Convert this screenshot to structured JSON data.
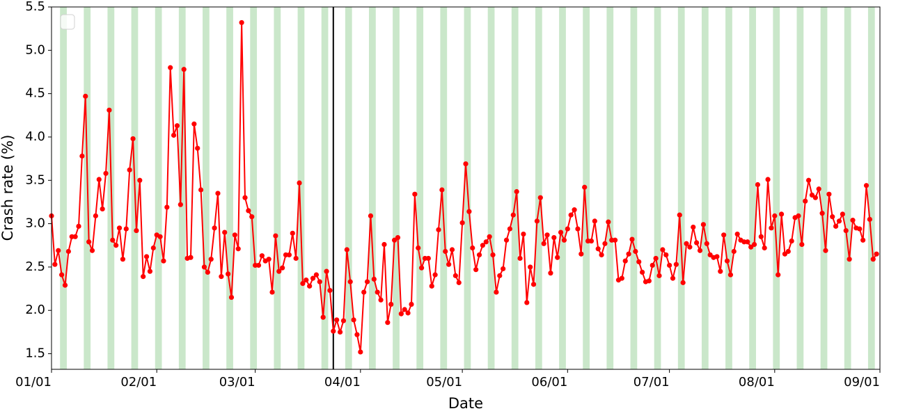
{
  "chart_data": {
    "type": "line",
    "xlabel": "Date",
    "ylabel": "Crash rate (%)",
    "color": "#ff0000",
    "shade_color": "#2ca02c",
    "vline": "03/24",
    "x": [
      "01/01",
      "01/02",
      "01/03",
      "01/04",
      "01/05",
      "01/06",
      "01/07",
      "01/08",
      "01/09",
      "01/10",
      "01/11",
      "01/12",
      "01/13",
      "01/14",
      "01/15",
      "01/16",
      "01/17",
      "01/18",
      "01/19",
      "01/20",
      "01/21",
      "01/22",
      "01/23",
      "01/24",
      "01/25",
      "01/26",
      "01/27",
      "01/28",
      "01/29",
      "01/30",
      "01/31",
      "02/01",
      "02/02",
      "02/03",
      "02/04",
      "02/05",
      "02/06",
      "02/07",
      "02/08",
      "02/09",
      "02/10",
      "02/11",
      "02/12",
      "02/13",
      "02/14",
      "02/15",
      "02/16",
      "02/17",
      "02/18",
      "02/19",
      "02/20",
      "02/21",
      "02/22",
      "02/23",
      "02/24",
      "02/25",
      "02/26",
      "02/27",
      "02/28",
      "02/29",
      "03/01",
      "03/02",
      "03/03",
      "03/04",
      "03/05",
      "03/06",
      "03/07",
      "03/08",
      "03/09",
      "03/10",
      "03/11",
      "03/12",
      "03/13",
      "03/14",
      "03/15",
      "03/16",
      "03/17",
      "03/18",
      "03/19",
      "03/20",
      "03/21",
      "03/22",
      "03/23",
      "03/24",
      "03/25",
      "03/26",
      "03/27",
      "03/28",
      "03/29",
      "03/30",
      "03/31",
      "04/01",
      "04/02",
      "04/03",
      "04/04",
      "04/05",
      "04/06",
      "04/07",
      "04/08",
      "04/09",
      "04/10",
      "04/11",
      "04/12",
      "04/13",
      "04/14",
      "04/15",
      "04/16",
      "04/17",
      "04/18",
      "04/19",
      "04/20",
      "04/21",
      "04/22",
      "04/23",
      "04/24",
      "04/25",
      "04/26",
      "04/27",
      "04/28",
      "04/29",
      "04/30",
      "05/01",
      "05/02",
      "05/03",
      "05/04",
      "05/05",
      "05/06",
      "05/07",
      "05/08",
      "05/09",
      "05/10",
      "05/11",
      "05/12",
      "05/13",
      "05/14",
      "05/15",
      "05/16",
      "05/17",
      "05/18",
      "05/19",
      "05/20",
      "05/21",
      "05/22",
      "05/23",
      "05/24",
      "05/25",
      "05/26",
      "05/27",
      "05/28",
      "05/29",
      "05/30",
      "05/31",
      "06/01",
      "06/02",
      "06/03",
      "06/04",
      "06/05",
      "06/06",
      "06/07",
      "06/08",
      "06/09",
      "06/10",
      "06/11",
      "06/12",
      "06/13",
      "06/14",
      "06/15",
      "06/16",
      "06/17",
      "06/18",
      "06/19",
      "06/20",
      "06/21",
      "06/22",
      "06/23",
      "06/24",
      "06/25",
      "06/26",
      "06/27",
      "06/28",
      "06/29",
      "06/30",
      "07/01",
      "07/02",
      "07/03",
      "07/04",
      "07/05",
      "07/06",
      "07/07",
      "07/08",
      "07/09",
      "07/10",
      "07/11",
      "07/12",
      "07/13",
      "07/14",
      "07/15",
      "07/16",
      "07/17",
      "07/18",
      "07/19",
      "07/20",
      "07/21",
      "07/22",
      "07/23",
      "07/24",
      "07/25",
      "07/26",
      "07/27",
      "07/28",
      "07/29",
      "07/30",
      "07/31",
      "08/01",
      "08/02",
      "08/03",
      "08/04",
      "08/05",
      "08/06",
      "08/07",
      "08/08",
      "08/09",
      "08/10",
      "08/11",
      "08/12",
      "08/13",
      "08/14",
      "08/15",
      "08/16",
      "08/17",
      "08/18",
      "08/19",
      "08/20",
      "08/21",
      "08/22",
      "08/23",
      "08/24",
      "08/25",
      "08/26",
      "08/27",
      "08/28",
      "08/29",
      "08/30",
      "08/31"
    ],
    "values": [
      3.09,
      2.53,
      2.69,
      2.41,
      2.29,
      2.68,
      2.85,
      2.85,
      2.97,
      3.78,
      4.47,
      2.79,
      2.69,
      3.09,
      3.51,
      3.17,
      3.58,
      4.31,
      2.81,
      2.75,
      2.95,
      2.59,
      2.94,
      3.62,
      3.98,
      2.92,
      3.5,
      2.39,
      2.62,
      2.45,
      2.72,
      2.87,
      2.85,
      2.57,
      3.19,
      4.8,
      4.02,
      4.13,
      3.22,
      4.78,
      2.6,
      2.61,
      4.15,
      3.87,
      3.39,
      2.5,
      2.44,
      2.59,
      2.95,
      3.35,
      2.39,
      2.9,
      2.42,
      2.15,
      2.87,
      2.71,
      5.32,
      3.3,
      3.15,
      3.08,
      2.52,
      2.52,
      2.63,
      2.57,
      2.59,
      2.21,
      2.86,
      2.45,
      2.49,
      2.64,
      2.64,
      2.89,
      2.6,
      3.47,
      2.31,
      2.35,
      2.28,
      2.37,
      2.41,
      2.33,
      1.92,
      2.45,
      2.23,
      1.76,
      1.89,
      1.75,
      1.88,
      2.7,
      2.33,
      1.89,
      1.72,
      1.52,
      2.21,
      2.33,
      3.09,
      2.36,
      2.21,
      2.12,
      2.76,
      1.86,
      2.07,
      2.81,
      2.84,
      1.96,
      2.01,
      1.97,
      2.07,
      3.34,
      2.72,
      2.49,
      2.6,
      2.6,
      2.28,
      2.41,
      2.93,
      3.39,
      2.68,
      2.53,
      2.7,
      2.4,
      2.32,
      3.01,
      3.69,
      3.14,
      2.72,
      2.47,
      2.64,
      2.75,
      2.79,
      2.85,
      2.64,
      2.21,
      2.4,
      2.48,
      2.81,
      2.94,
      3.1,
      3.37,
      2.6,
      2.88,
      2.09,
      2.5,
      2.3,
      3.03,
      3.3,
      2.77,
      2.87,
      2.43,
      2.84,
      2.61,
      2.9,
      2.81,
      2.94,
      3.1,
      3.16,
      2.94,
      2.65,
      3.42,
      2.8,
      2.8,
      3.03,
      2.71,
      2.64,
      2.77,
      3.02,
      2.81,
      2.81,
      2.35,
      2.37,
      2.57,
      2.65,
      2.82,
      2.68,
      2.56,
      2.44,
      2.33,
      2.34,
      2.52,
      2.6,
      2.4,
      2.7,
      2.64,
      2.52,
      2.37,
      2.53,
      3.1,
      2.32,
      2.77,
      2.73,
      2.96,
      2.78,
      2.69,
      2.99,
      2.77,
      2.64,
      2.61,
      2.62,
      2.45,
      2.87,
      2.57,
      2.41,
      2.68,
      2.88,
      2.81,
      2.79,
      2.79,
      2.73,
      2.76,
      3.45,
      2.85,
      2.72,
      3.51,
      2.95,
      3.09,
      2.41,
      3.11,
      2.65,
      2.68,
      2.8,
      3.07,
      3.09,
      2.76,
      3.26,
      3.5,
      3.33,
      3.3,
      3.4,
      3.12,
      2.69,
      3.34,
      3.08,
      2.97,
      3.03,
      3.11,
      2.92,
      2.59,
      3.04,
      2.95,
      2.94,
      2.81,
      3.44,
      3.05,
      2.59,
      2.65
    ],
    "shaded_spans": [
      [
        "01/04",
        "01/05"
      ],
      [
        "01/11",
        "01/12"
      ],
      [
        "01/18",
        "01/19"
      ],
      [
        "01/25",
        "01/26"
      ],
      [
        "02/01",
        "02/02"
      ],
      [
        "02/08",
        "02/09"
      ],
      [
        "02/15",
        "02/16"
      ],
      [
        "02/22",
        "02/23"
      ],
      [
        "02/29",
        "03/01"
      ],
      [
        "03/07",
        "03/08"
      ],
      [
        "03/14",
        "03/15"
      ],
      [
        "03/21",
        "03/22"
      ],
      [
        "03/28",
        "03/29"
      ],
      [
        "04/04",
        "04/05"
      ],
      [
        "04/11",
        "04/12"
      ],
      [
        "04/18",
        "04/19"
      ],
      [
        "04/25",
        "04/26"
      ],
      [
        "05/02",
        "05/03"
      ],
      [
        "05/09",
        "05/10"
      ],
      [
        "05/16",
        "05/17"
      ],
      [
        "05/23",
        "05/24"
      ],
      [
        "05/30",
        "05/31"
      ],
      [
        "06/06",
        "06/07"
      ],
      [
        "06/13",
        "06/14"
      ],
      [
        "06/20",
        "06/21"
      ],
      [
        "06/27",
        "06/28"
      ],
      [
        "07/04",
        "07/05"
      ],
      [
        "07/11",
        "07/12"
      ],
      [
        "07/18",
        "07/19"
      ],
      [
        "07/25",
        "07/26"
      ],
      [
        "08/01",
        "08/02"
      ],
      [
        "08/08",
        "08/09"
      ],
      [
        "08/15",
        "08/16"
      ],
      [
        "08/22",
        "08/23"
      ],
      [
        "08/29",
        "08/30"
      ]
    ],
    "xlim": [
      "01/01",
      "09/01"
    ],
    "xticks": [
      "01/01",
      "02/01",
      "03/01",
      "04/01",
      "05/01",
      "06/01",
      "07/01",
      "08/01",
      "09/01"
    ],
    "ylim": [
      1.32,
      5.5
    ],
    "yticks": [
      1.5,
      {
        "value": 2,
        "label": "2.0"
      },
      2.5,
      {
        "value": 3,
        "label": "3.0"
      },
      3.5,
      {
        "value": 4,
        "label": "4.0"
      },
      4.5,
      {
        "value": 5,
        "label": "5.0"
      },
      5.5
    ]
  }
}
